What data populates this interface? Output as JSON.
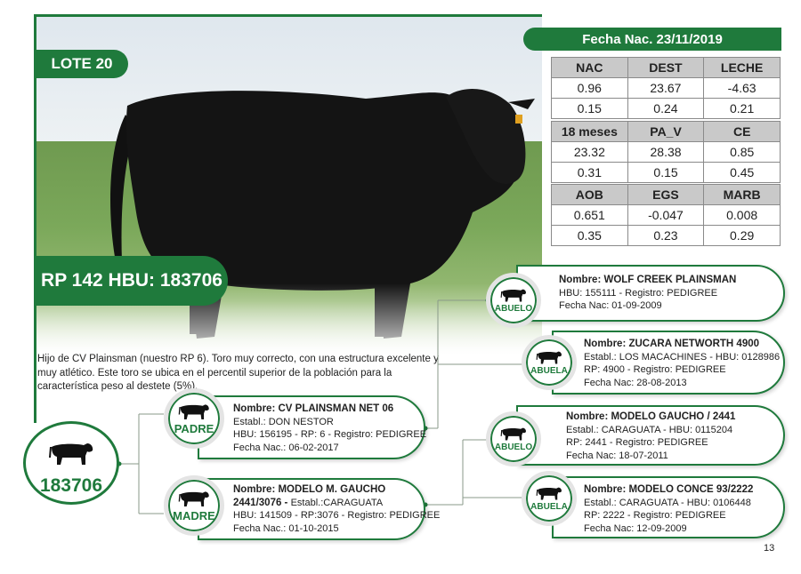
{
  "lote": "LOTE 20",
  "rp": "RP 142 HBU: 183706",
  "fecha": "Fecha Nac. 23/11/2019",
  "epd_tables": [
    {
      "headers": [
        "NAC",
        "DEST",
        "LECHE"
      ],
      "rows": [
        [
          "0.96",
          "23.67",
          "-4.63"
        ],
        [
          "0.15",
          "0.24",
          "0.21"
        ]
      ]
    },
    {
      "headers": [
        "18 meses",
        "PA_V",
        "CE"
      ],
      "rows": [
        [
          "23.32",
          "28.38",
          "0.85"
        ],
        [
          "0.31",
          "0.15",
          "0.45"
        ]
      ]
    },
    {
      "headers": [
        "AOB",
        "EGS",
        "MARB"
      ],
      "rows": [
        [
          "0.651",
          "-0.047",
          "0.008"
        ],
        [
          "0.35",
          "0.23",
          "0.29"
        ]
      ]
    }
  ],
  "description": "Hijo de CV Plainsman (nuestro RP 6). Toro muy correcto, con una estructura excelente y muy atlético. Este toro se ubica en el percentil superior de la población para la característica peso al destete (5%).",
  "main_id": "183706",
  "padre": {
    "role": "PADRE",
    "lines": [
      "Nombre: CV PLAINSMAN NET 06",
      "Establ.: DON NESTOR",
      "HBU: 156195 - RP: 6 - Registro: PEDIGREE",
      "Fecha Nac.: 06-02-2017"
    ]
  },
  "madre": {
    "role": "MADRE",
    "lines": [
      "Nombre: MODELO M. GAUCHO",
      "2441/3076 - ",
      "Establ.:CARAGUATA",
      "HBU: 141509 - RP:3076 - Registro: PEDIGREE",
      "Fecha Nac.: 01-10-2015"
    ]
  },
  "abuelo_p": {
    "role": "ABUELO",
    "lines": [
      "Nombre: WOLF CREEK PLAINSMAN",
      "HBU: 155111 - Registro: PEDIGREE",
      "Fecha Nac: 01-09-2009"
    ]
  },
  "abuela_p": {
    "role": "ABUELA",
    "lines": [
      "Nombre: ZUCARA NETWORTH 4900",
      "Establ.: LOS MACACHINES - HBU: 0128986",
      "RP: 4900 - Registro: PEDIGREE",
      "Fecha Nac: 28-08-2013"
    ]
  },
  "abuelo_m": {
    "role": "ABUELO",
    "lines": [
      "Nombre: MODELO GAUCHO / 2441",
      "Establ.: CARAGUATA - HBU: 0115204",
      "RP: 2441 - Registro: PEDIGREE",
      "Fecha Nac: 18-07-2011"
    ]
  },
  "abuela_m": {
    "role": "ABUELA",
    "lines": [
      "Nombre: MODELO CONCE 93/2222",
      "Establ.: CARAGUATA - HBU: 0106448",
      "RP: 2222 - Registro: PEDIGREE",
      "Fecha Nac: 12-09-2009"
    ]
  },
  "page_number": "13",
  "colors": {
    "brand_green": "#1f7a3c",
    "table_header": "#c9c9c9"
  },
  "icons": {
    "animal": "bull-silhouette-icon"
  }
}
